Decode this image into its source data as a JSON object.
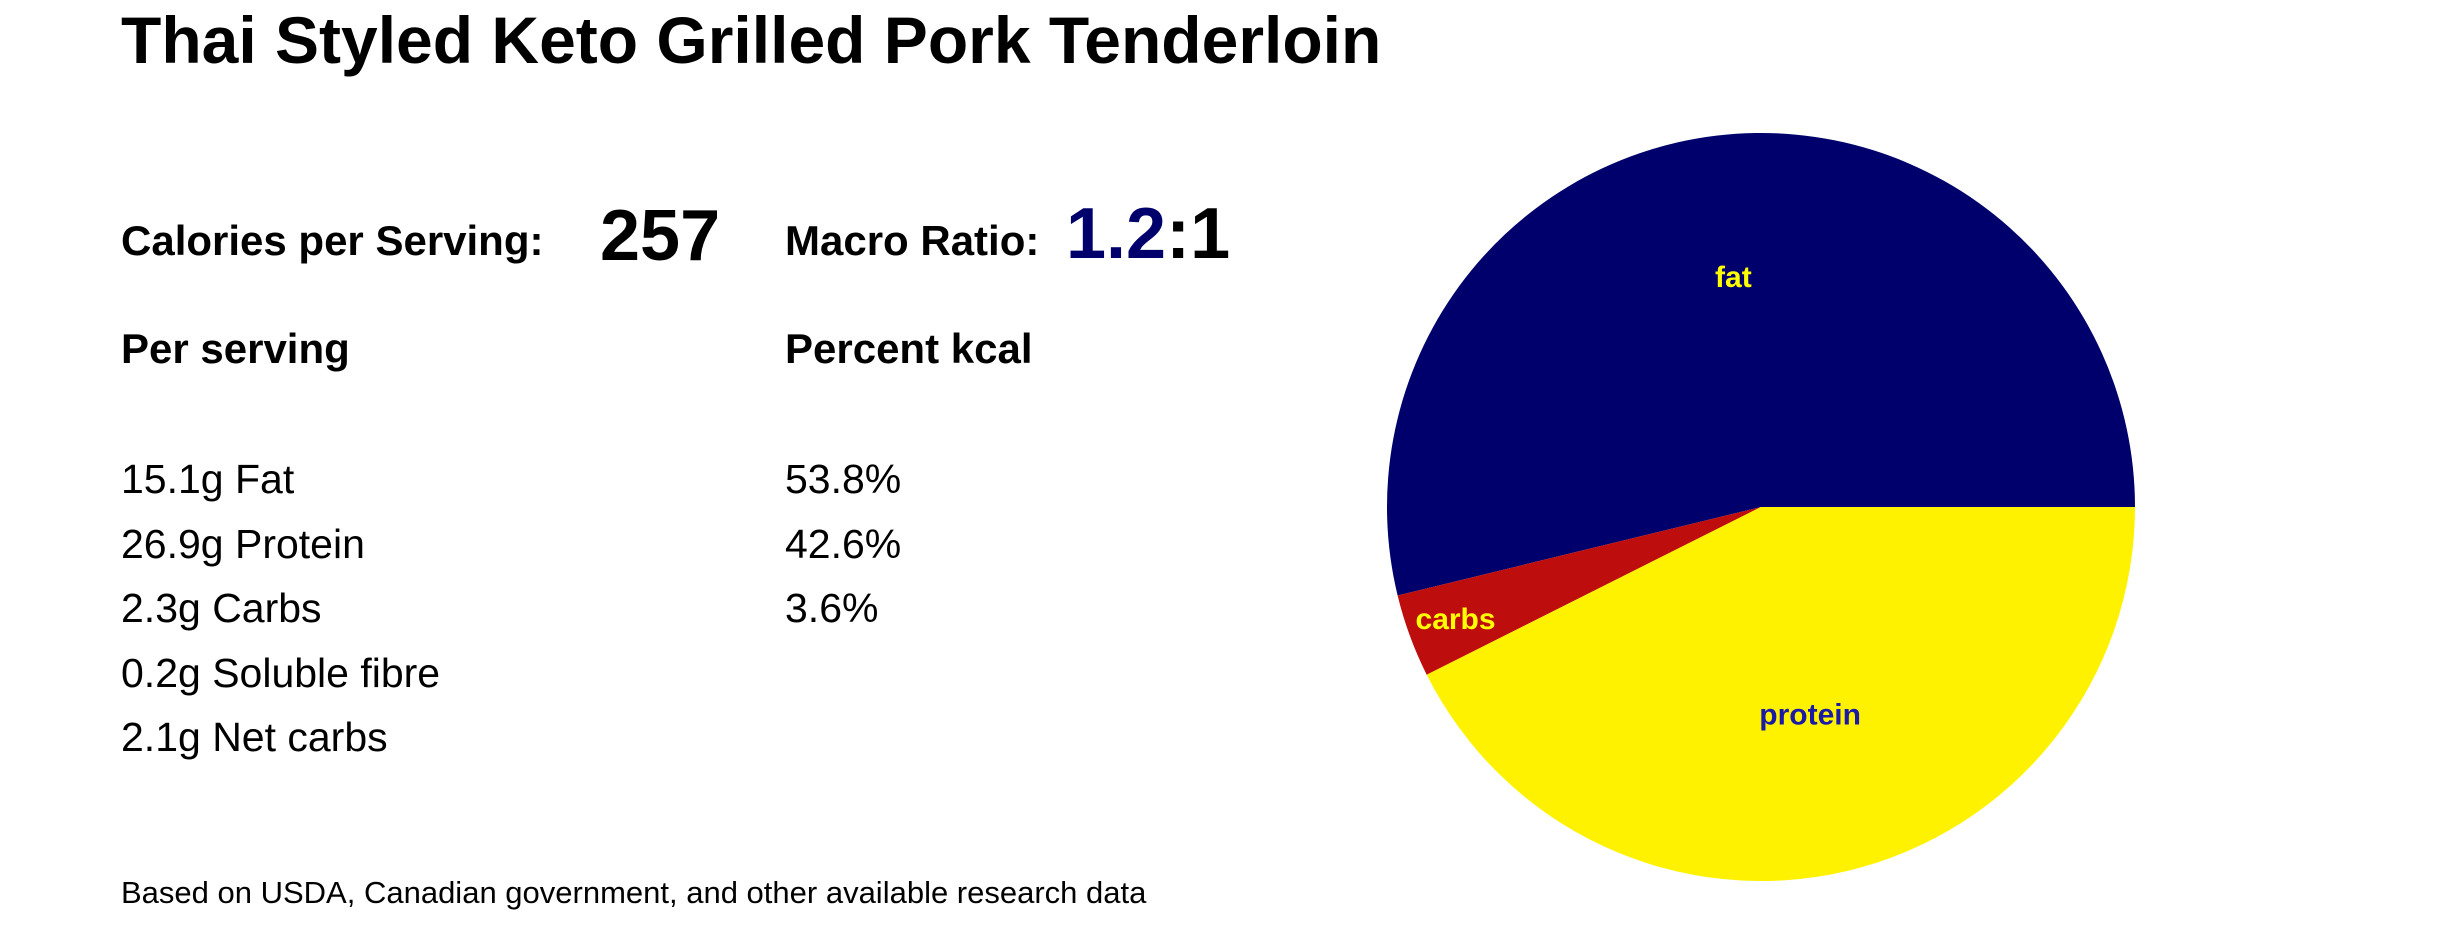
{
  "title": "Thai Styled Keto Grilled Pork Tenderloin",
  "calories": {
    "label": "Calories per Serving:",
    "value": "257"
  },
  "macro_ratio": {
    "label": "Macro Ratio:",
    "first": "1.2",
    "rest": ":1"
  },
  "headers": {
    "per_serving": "Per serving",
    "percent_kcal": "Percent kcal"
  },
  "per_serving": [
    "15.1g Fat",
    "26.9g Protein",
    "2.3g Carbs",
    "0.2g Soluble fibre",
    "2.1g Net carbs"
  ],
  "percent_kcal": [
    "53.8%",
    "42.6%",
    "3.6%"
  ],
  "footer": "Based on USDA, Canadian government, and other available research data",
  "colors": {
    "fat": "#00006c",
    "protein": "#fff200",
    "carbs": "#be0d0d",
    "ratio_accent": "#00006c"
  },
  "chart_data": {
    "type": "pie",
    "slices": [
      {
        "label": "fat",
        "value": 53.8,
        "color": "#00006c",
        "label_color": "#ffff00"
      },
      {
        "label": "carbs",
        "value": 3.6,
        "color": "#be0d0d",
        "label_color": "#ffff00"
      },
      {
        "label": "protein",
        "value": 42.6,
        "color": "#fff200",
        "label_color": "#1a1aa6"
      }
    ],
    "start_angle_deg": 0,
    "direction": "clockwise-from-3-oclock",
    "legend": "none"
  }
}
